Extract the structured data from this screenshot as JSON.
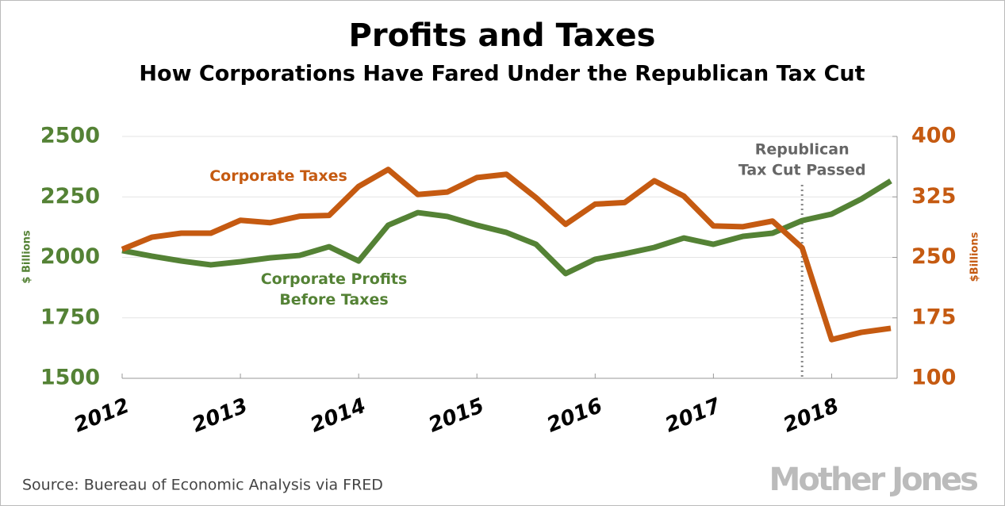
{
  "chart_data": {
    "type": "line",
    "title": "Profits and Taxes",
    "subtitle": "How Corporations Have Fared Under the Republican Tax Cut",
    "ylabel": "$ Billions",
    "y2label": "$Billions",
    "source": "Source: Buereau of Economic Analysis via FRED",
    "logo": "Mother Jones",
    "x": [
      2012,
      2012.25,
      2012.5,
      2012.75,
      2013,
      2013.25,
      2013.5,
      2013.75,
      2014,
      2014.25,
      2014.5,
      2014.75,
      2015,
      2015.25,
      2015.5,
      2015.75,
      2016,
      2016.25,
      2016.5,
      2016.75,
      2017,
      2017.25,
      2017.5,
      2017.75,
      2018,
      2018.25,
      2018.5
    ],
    "xlim": [
      2012,
      2018.5
    ],
    "xticks": [
      2012,
      2013,
      2014,
      2015,
      2016,
      2017,
      2018
    ],
    "ylim": [
      1500,
      2500
    ],
    "yticks": [
      1500,
      1750,
      2000,
      2250,
      2500
    ],
    "y2lim": [
      100,
      400
    ],
    "y2ticks": [
      100,
      175,
      250,
      325,
      400
    ],
    "grid": true,
    "series": [
      {
        "name": "Corporate Profits Before Taxes",
        "color": "#548235",
        "axis": "y",
        "values": [
          2028,
          2005,
          1985,
          1969,
          1982,
          1998,
          2008,
          2044,
          1985,
          2133,
          2185,
          2169,
          2133,
          2103,
          2054,
          1933,
          1992,
          2015,
          2041,
          2080,
          2054,
          2087,
          2100,
          2152,
          2179,
          2241,
          2316
        ]
      },
      {
        "name": "Corporate Taxes",
        "color": "#c55a11",
        "axis": "y2",
        "values": [
          260,
          275,
          280,
          280,
          296,
          293,
          301,
          302,
          338,
          359,
          328,
          331,
          349,
          353,
          324,
          291,
          316,
          318,
          345,
          326,
          289,
          288,
          295,
          262,
          148,
          157,
          162
        ]
      }
    ],
    "annotation": {
      "lines": [
        "Republican",
        "Tax Cut Passed"
      ],
      "x": 2017.75
    }
  }
}
